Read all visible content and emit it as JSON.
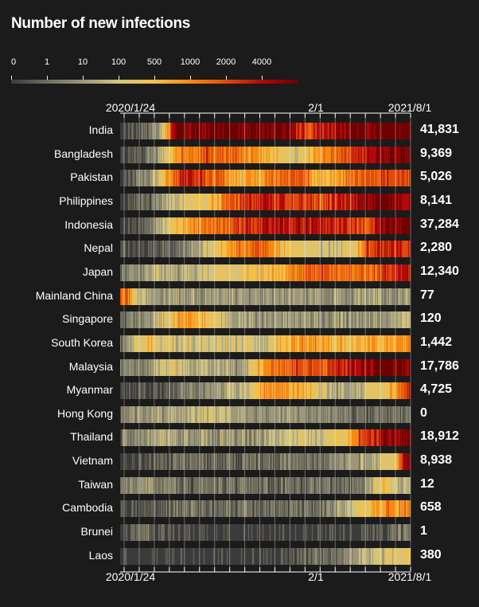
{
  "title": "Number of new infections",
  "legend": {
    "labels": [
      "0",
      "1",
      "10",
      "100",
      "500",
      "1000",
      "2000",
      "4000"
    ],
    "colors": [
      "#3b3b3b",
      "#6f6d5c",
      "#9c977a",
      "#d2c47e",
      "#f2c14a",
      "#f58a12",
      "#e14a0c",
      "#b3080a",
      "#6e0000"
    ]
  },
  "axis": {
    "top": [
      "2020/1/24",
      "2/1",
      "2021/8/1"
    ],
    "bottom": [
      "2020/1/24",
      "2/1",
      "2021/8/1"
    ]
  },
  "chart_data": {
    "type": "heatmap",
    "title": "Number of new infections",
    "x_start": "2020/1/24",
    "x_end": "2021/8/1",
    "x_ticks": [
      "2020/1/24",
      "2/1",
      "2021/8/1"
    ],
    "color_scale": {
      "thresholds": [
        0,
        1,
        10,
        100,
        500,
        1000,
        2000,
        4000
      ],
      "colors": [
        "#3b3b3b",
        "#6f6d5c",
        "#9c977a",
        "#d2c47e",
        "#f2c14a",
        "#f58a12",
        "#e14a0c",
        "#b3080a",
        "#6e0000"
      ]
    },
    "rows": [
      {
        "name": "India",
        "latest": "41,831",
        "keyframes": [
          [
            0,
            0
          ],
          [
            0.1,
            1
          ],
          [
            0.15,
            3
          ],
          [
            0.17,
            6
          ],
          [
            0.2,
            8
          ],
          [
            0.55,
            8
          ],
          [
            0.6,
            7
          ],
          [
            0.65,
            6
          ],
          [
            0.72,
            7
          ],
          [
            0.8,
            8
          ],
          [
            1,
            8
          ]
        ]
      },
      {
        "name": "Bangladesh",
        "latest": "9,369",
        "keyframes": [
          [
            0,
            0
          ],
          [
            0.1,
            1
          ],
          [
            0.15,
            3
          ],
          [
            0.2,
            5
          ],
          [
            0.3,
            6
          ],
          [
            0.45,
            5
          ],
          [
            0.55,
            4
          ],
          [
            0.6,
            3
          ],
          [
            0.7,
            5
          ],
          [
            0.78,
            6
          ],
          [
            0.85,
            7
          ],
          [
            1,
            8
          ]
        ]
      },
      {
        "name": "Pakistan",
        "latest": "5,026",
        "keyframes": [
          [
            0,
            0
          ],
          [
            0.1,
            2
          ],
          [
            0.15,
            4
          ],
          [
            0.22,
            7
          ],
          [
            0.3,
            6
          ],
          [
            0.4,
            4
          ],
          [
            0.5,
            5
          ],
          [
            0.6,
            6
          ],
          [
            0.7,
            4
          ],
          [
            0.85,
            6
          ],
          [
            1,
            6
          ]
        ]
      },
      {
        "name": "Philippines",
        "latest": "8,141",
        "keyframes": [
          [
            0,
            0
          ],
          [
            0.1,
            1
          ],
          [
            0.2,
            3
          ],
          [
            0.3,
            4
          ],
          [
            0.4,
            6
          ],
          [
            0.5,
            7
          ],
          [
            0.6,
            6
          ],
          [
            0.7,
            6
          ],
          [
            0.8,
            7
          ],
          [
            0.9,
            8
          ],
          [
            1,
            7
          ]
        ]
      },
      {
        "name": "Indonesia",
        "latest": "37,284",
        "keyframes": [
          [
            0,
            0
          ],
          [
            0.1,
            1
          ],
          [
            0.15,
            3
          ],
          [
            0.25,
            5
          ],
          [
            0.4,
            6
          ],
          [
            0.5,
            7
          ],
          [
            0.6,
            7
          ],
          [
            0.7,
            7
          ],
          [
            0.85,
            6
          ],
          [
            0.92,
            8
          ],
          [
            1,
            8
          ]
        ]
      },
      {
        "name": "Nepal",
        "latest": "2,280",
        "keyframes": [
          [
            0,
            0
          ],
          [
            0.2,
            1
          ],
          [
            0.3,
            3
          ],
          [
            0.4,
            5
          ],
          [
            0.5,
            6
          ],
          [
            0.55,
            4
          ],
          [
            0.7,
            3
          ],
          [
            0.8,
            3
          ],
          [
            0.85,
            6
          ],
          [
            0.92,
            7
          ],
          [
            1,
            6
          ]
        ]
      },
      {
        "name": "Japan",
        "latest": "12,340",
        "keyframes": [
          [
            0,
            1
          ],
          [
            0.15,
            3
          ],
          [
            0.2,
            2
          ],
          [
            0.3,
            3
          ],
          [
            0.45,
            4
          ],
          [
            0.5,
            4
          ],
          [
            0.6,
            5
          ],
          [
            0.7,
            6
          ],
          [
            0.8,
            5
          ],
          [
            0.9,
            6
          ],
          [
            1,
            7
          ]
        ]
      },
      {
        "name": "Mainland China",
        "latest": "77",
        "keyframes": [
          [
            0,
            6
          ],
          [
            0.03,
            5
          ],
          [
            0.06,
            3
          ],
          [
            0.1,
            2
          ],
          [
            0.3,
            2
          ],
          [
            0.6,
            2
          ],
          [
            1,
            2
          ]
        ]
      },
      {
        "name": "Singapore",
        "latest": "120",
        "keyframes": [
          [
            0,
            1
          ],
          [
            0.1,
            2
          ],
          [
            0.15,
            3
          ],
          [
            0.22,
            5
          ],
          [
            0.28,
            4
          ],
          [
            0.35,
            3
          ],
          [
            0.45,
            2
          ],
          [
            0.7,
            2
          ],
          [
            0.9,
            2
          ],
          [
            1,
            3
          ]
        ]
      },
      {
        "name": "South Korea",
        "latest": "1,442",
        "keyframes": [
          [
            0,
            1
          ],
          [
            0.05,
            3
          ],
          [
            0.1,
            4
          ],
          [
            0.15,
            3
          ],
          [
            0.3,
            3
          ],
          [
            0.5,
            3
          ],
          [
            0.55,
            4
          ],
          [
            0.65,
            5
          ],
          [
            0.75,
            4
          ],
          [
            0.85,
            4
          ],
          [
            0.95,
            5
          ],
          [
            1,
            5
          ]
        ]
      },
      {
        "name": "Malaysia",
        "latest": "17,786",
        "keyframes": [
          [
            0,
            1
          ],
          [
            0.1,
            2
          ],
          [
            0.15,
            3
          ],
          [
            0.4,
            2
          ],
          [
            0.45,
            3
          ],
          [
            0.5,
            5
          ],
          [
            0.6,
            6
          ],
          [
            0.7,
            6
          ],
          [
            0.8,
            7
          ],
          [
            0.9,
            8
          ],
          [
            1,
            8
          ]
        ]
      },
      {
        "name": "Myanmar",
        "latest": "4,725",
        "keyframes": [
          [
            0,
            0
          ],
          [
            0.2,
            1
          ],
          [
            0.35,
            2
          ],
          [
            0.45,
            3
          ],
          [
            0.5,
            5
          ],
          [
            0.55,
            5
          ],
          [
            0.65,
            4
          ],
          [
            0.75,
            2
          ],
          [
            0.85,
            3
          ],
          [
            0.92,
            4
          ],
          [
            0.98,
            6
          ],
          [
            1,
            7
          ]
        ]
      },
      {
        "name": "Hong Kong",
        "latest": "0",
        "keyframes": [
          [
            0,
            1
          ],
          [
            0.05,
            2
          ],
          [
            0.15,
            2
          ],
          [
            0.3,
            3
          ],
          [
            0.45,
            2
          ],
          [
            0.6,
            2
          ],
          [
            0.8,
            1
          ],
          [
            1,
            1
          ]
        ]
      },
      {
        "name": "Thailand",
        "latest": "18,912",
        "keyframes": [
          [
            0,
            1
          ],
          [
            0.1,
            2
          ],
          [
            0.15,
            3
          ],
          [
            0.2,
            2
          ],
          [
            0.5,
            2
          ],
          [
            0.6,
            3
          ],
          [
            0.7,
            3
          ],
          [
            0.78,
            4
          ],
          [
            0.82,
            6
          ],
          [
            0.9,
            7
          ],
          [
            1,
            8
          ]
        ]
      },
      {
        "name": "Vietnam",
        "latest": "8,938",
        "keyframes": [
          [
            0,
            0
          ],
          [
            0.2,
            1
          ],
          [
            0.5,
            1
          ],
          [
            0.7,
            1
          ],
          [
            0.75,
            2
          ],
          [
            0.85,
            2
          ],
          [
            0.9,
            3
          ],
          [
            0.95,
            4
          ],
          [
            0.98,
            7
          ],
          [
            1,
            8
          ]
        ]
      },
      {
        "name": "Taiwan",
        "latest": "12",
        "keyframes": [
          [
            0,
            1
          ],
          [
            0.1,
            2
          ],
          [
            0.2,
            1
          ],
          [
            0.6,
            1
          ],
          [
            0.8,
            1
          ],
          [
            0.85,
            2
          ],
          [
            0.9,
            4
          ],
          [
            0.95,
            3
          ],
          [
            1,
            2
          ]
        ]
      },
      {
        "name": "Cambodia",
        "latest": "658",
        "keyframes": [
          [
            0,
            0
          ],
          [
            0.2,
            1
          ],
          [
            0.5,
            1
          ],
          [
            0.7,
            1
          ],
          [
            0.75,
            2
          ],
          [
            0.8,
            3
          ],
          [
            0.85,
            4
          ],
          [
            0.92,
            5
          ],
          [
            1,
            5
          ]
        ]
      },
      {
        "name": "Brunei",
        "latest": "1",
        "keyframes": [
          [
            0,
            0
          ],
          [
            0.1,
            1
          ],
          [
            0.2,
            0
          ],
          [
            0.4,
            0
          ],
          [
            0.6,
            0
          ],
          [
            0.8,
            0
          ],
          [
            0.95,
            1
          ],
          [
            1,
            1
          ]
        ]
      },
      {
        "name": "Laos",
        "latest": "380",
        "keyframes": [
          [
            0,
            0
          ],
          [
            0.2,
            0
          ],
          [
            0.5,
            0
          ],
          [
            0.7,
            1
          ],
          [
            0.75,
            1
          ],
          [
            0.8,
            2
          ],
          [
            0.9,
            3
          ],
          [
            0.98,
            3
          ],
          [
            1,
            4
          ]
        ]
      }
    ]
  }
}
